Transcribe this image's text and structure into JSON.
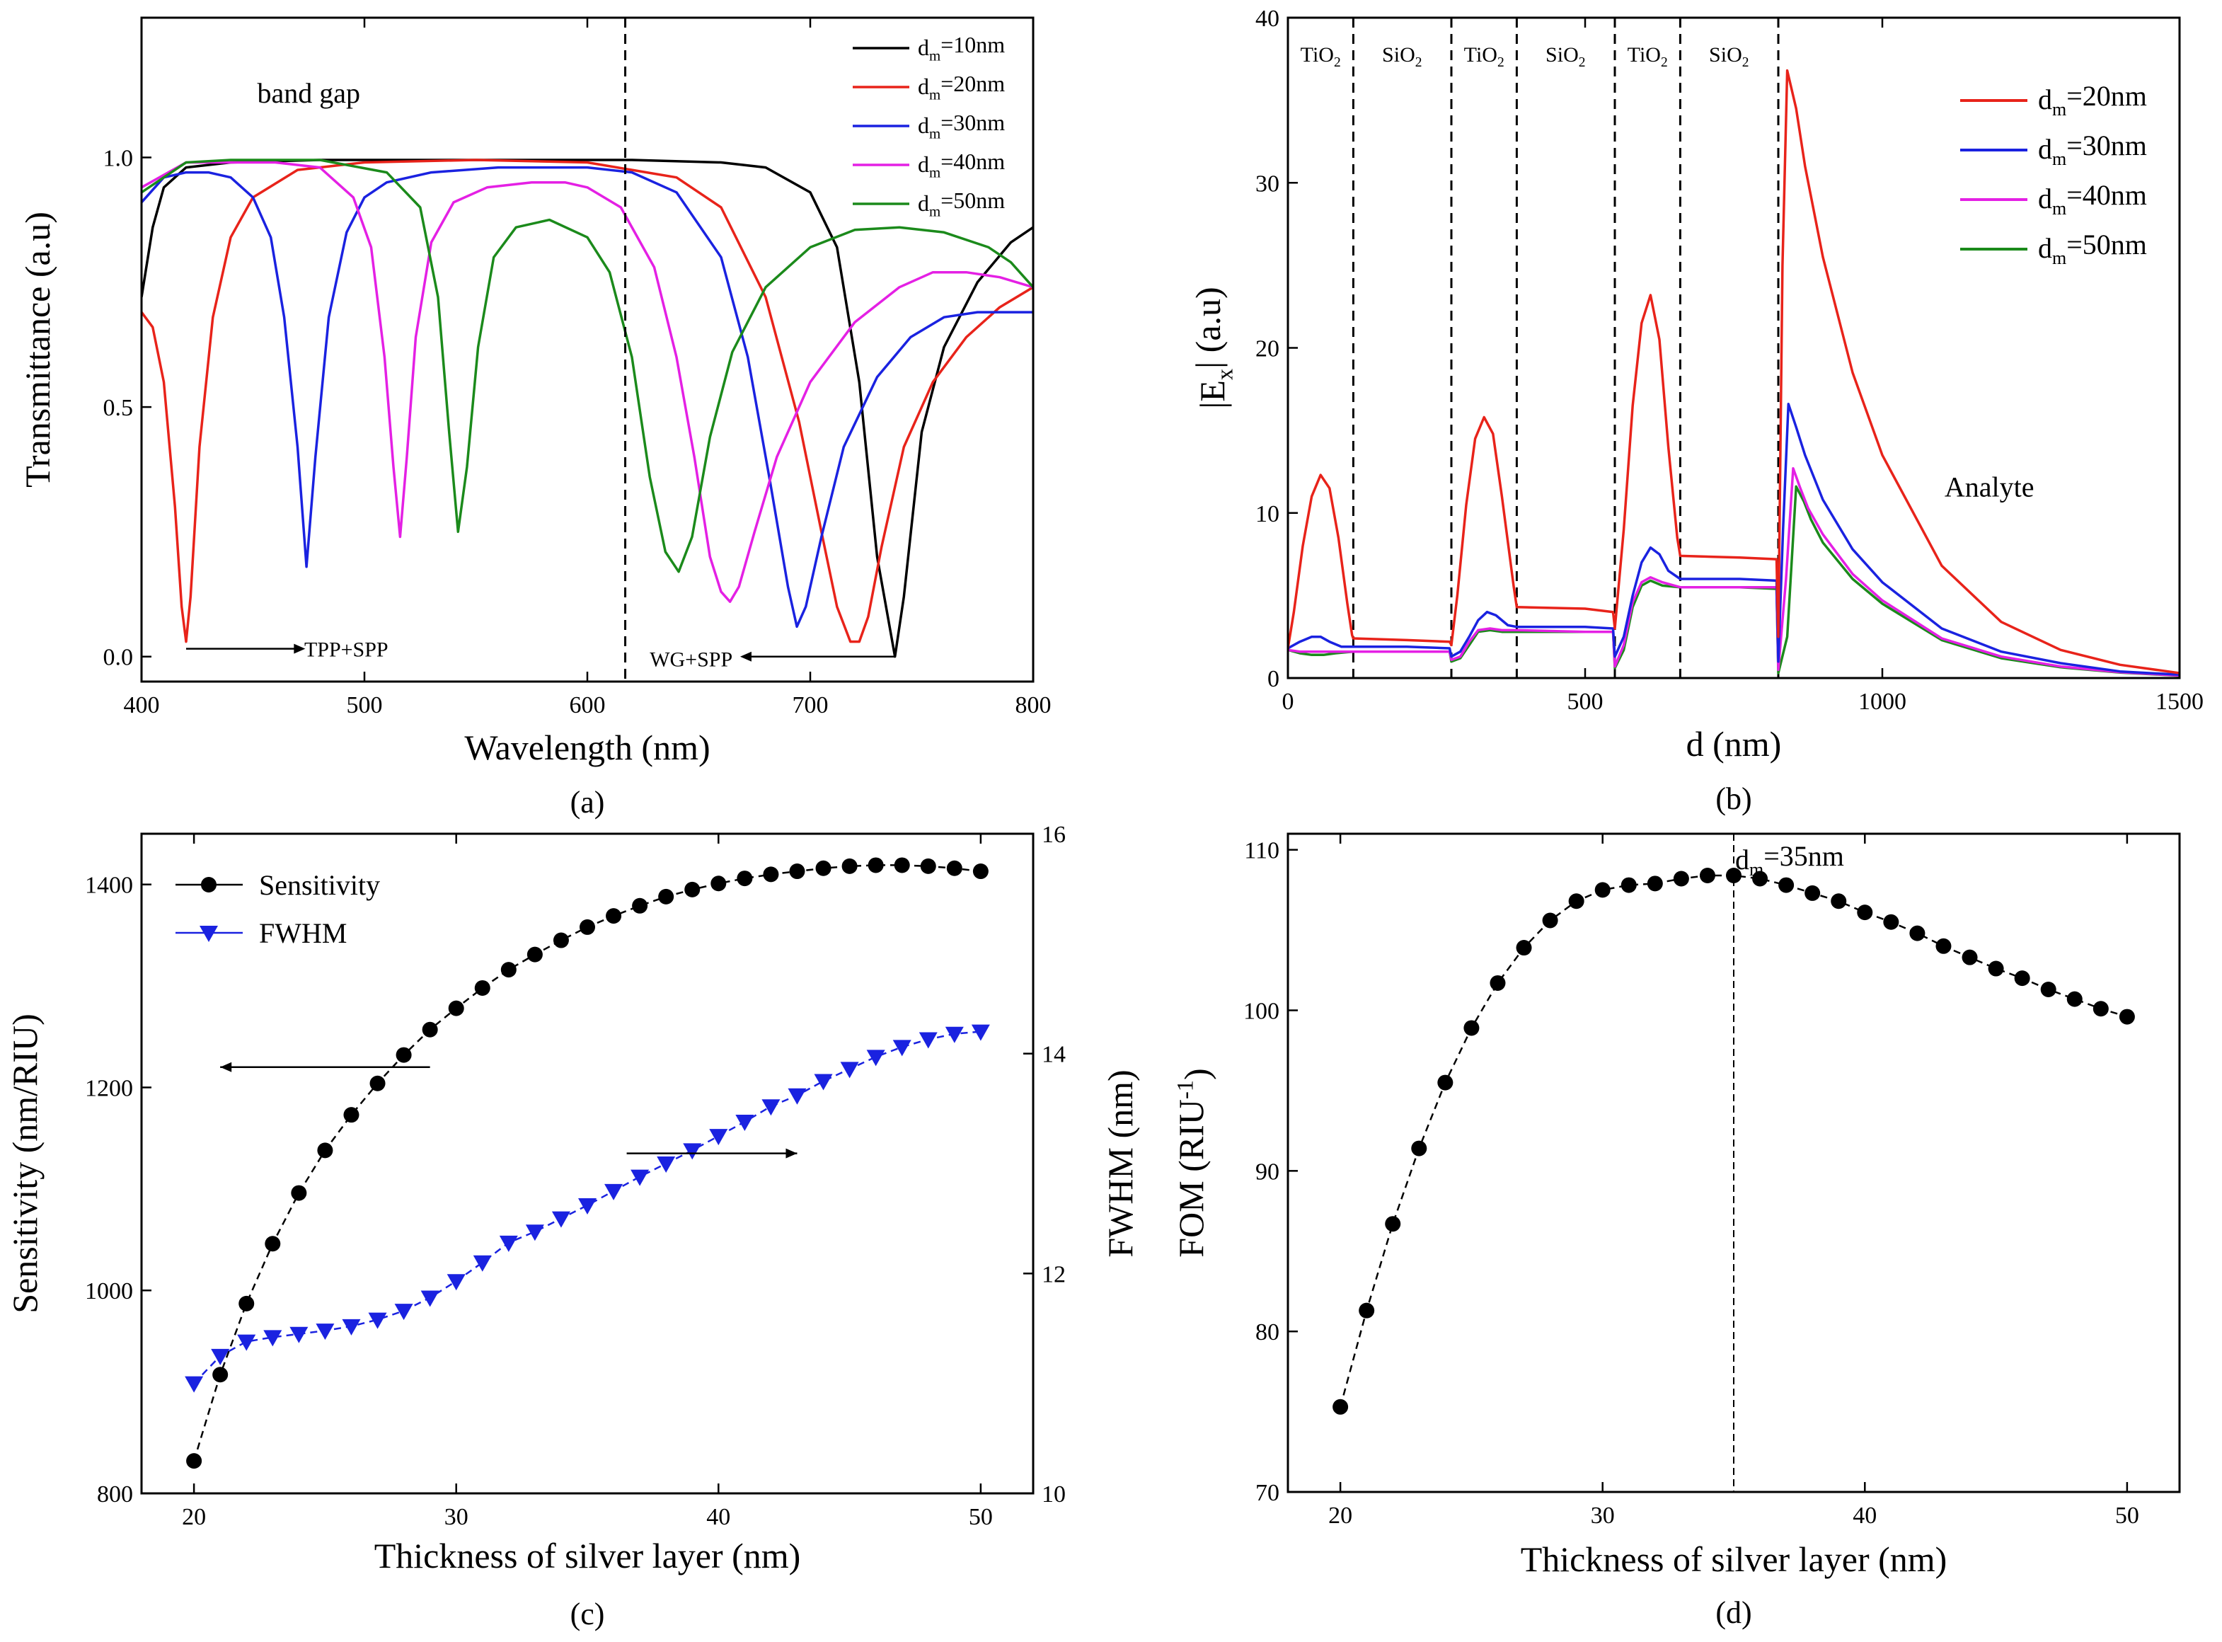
{
  "chart_data": [
    {
      "panel": "a",
      "type": "line",
      "caption": "(a)",
      "xlabel": "Wavelength (nm)",
      "ylabel": "Transmittance (a.u)",
      "xlim": [
        400,
        800
      ],
      "ylim": [
        -0.05,
        1.28
      ],
      "xticks": [
        400,
        500,
        600,
        700,
        800
      ],
      "yticks": [
        0.0,
        0.5,
        1.0
      ],
      "ytick_labels": [
        "0.0",
        "0.5",
        "1.0"
      ],
      "legend_position": "top-right",
      "vline_x": 617,
      "annotations": [
        {
          "text": "band gap",
          "x": 475,
          "y": 1.11
        },
        {
          "text": "TPP+SPP",
          "x": 473,
          "y": 0.02,
          "arrow_from": 420,
          "arrow_to": 469
        },
        {
          "text": "WG+SPP",
          "x": 628,
          "y": 0.0,
          "arrow_from": 738,
          "arrow_to": 673
        }
      ],
      "series": [
        {
          "name_base": "d",
          "name_sub": "m",
          "name_rest": "=10nm",
          "color": "#000000",
          "x": [
            400,
            405,
            410,
            420,
            440,
            480,
            550,
            620,
            660,
            680,
            700,
            712,
            722,
            730,
            738,
            742,
            750,
            760,
            775,
            790,
            800
          ],
          "y": [
            0.72,
            0.86,
            0.94,
            0.98,
            0.99,
            0.995,
            0.995,
            0.995,
            0.99,
            0.98,
            0.93,
            0.82,
            0.55,
            0.2,
            0.0,
            0.12,
            0.45,
            0.62,
            0.75,
            0.83,
            0.86
          ]
        },
        {
          "name_base": "d",
          "name_sub": "m",
          "name_rest": "=20nm",
          "color": "#e8231a",
          "x": [
            400,
            405,
            410,
            415,
            418,
            420,
            422,
            426,
            432,
            440,
            450,
            470,
            500,
            550,
            600,
            640,
            660,
            680,
            695,
            705,
            712,
            718,
            722,
            726,
            732,
            742,
            755,
            770,
            785,
            800
          ],
          "y": [
            0.69,
            0.66,
            0.55,
            0.3,
            0.1,
            0.03,
            0.12,
            0.42,
            0.68,
            0.84,
            0.92,
            0.975,
            0.99,
            0.995,
            0.99,
            0.96,
            0.9,
            0.72,
            0.47,
            0.25,
            0.1,
            0.03,
            0.03,
            0.08,
            0.22,
            0.42,
            0.55,
            0.64,
            0.7,
            0.74
          ]
        },
        {
          "name_base": "d",
          "name_sub": "m",
          "name_rest": "=30nm",
          "color": "#1a22e0",
          "x": [
            400,
            410,
            420,
            430,
            440,
            450,
            458,
            464,
            470,
            474,
            478,
            484,
            492,
            500,
            510,
            530,
            560,
            600,
            620,
            640,
            660,
            672,
            682,
            690,
            694,
            698,
            705,
            715,
            730,
            745,
            760,
            775,
            790,
            800
          ],
          "y": [
            0.91,
            0.96,
            0.97,
            0.97,
            0.96,
            0.92,
            0.84,
            0.68,
            0.42,
            0.18,
            0.4,
            0.68,
            0.85,
            0.92,
            0.95,
            0.97,
            0.98,
            0.98,
            0.97,
            0.93,
            0.8,
            0.6,
            0.35,
            0.14,
            0.06,
            0.1,
            0.24,
            0.42,
            0.56,
            0.64,
            0.68,
            0.69,
            0.69,
            0.69
          ]
        },
        {
          "name_base": "d",
          "name_sub": "m",
          "name_rest": "=40nm",
          "color": "#e420e4",
          "x": [
            400,
            420,
            440,
            460,
            480,
            495,
            503,
            509,
            513,
            516,
            519,
            523,
            530,
            540,
            555,
            575,
            590,
            600,
            615,
            630,
            640,
            648,
            655,
            660,
            664,
            668,
            675,
            685,
            700,
            720,
            740,
            755,
            770,
            785,
            800
          ],
          "y": [
            0.94,
            0.99,
            0.99,
            0.99,
            0.98,
            0.92,
            0.82,
            0.6,
            0.38,
            0.24,
            0.4,
            0.64,
            0.83,
            0.91,
            0.94,
            0.95,
            0.95,
            0.94,
            0.9,
            0.78,
            0.6,
            0.4,
            0.2,
            0.13,
            0.11,
            0.14,
            0.25,
            0.4,
            0.55,
            0.67,
            0.74,
            0.77,
            0.77,
            0.76,
            0.74
          ]
        },
        {
          "name_base": "d",
          "name_sub": "m",
          "name_rest": "=50nm",
          "color": "#1b8a1b",
          "x": [
            400,
            420,
            440,
            480,
            510,
            525,
            533,
            538,
            542,
            546,
            551,
            558,
            568,
            583,
            600,
            610,
            620,
            628,
            635,
            641,
            647,
            655,
            665,
            680,
            700,
            720,
            740,
            760,
            780,
            790,
            800
          ],
          "y": [
            0.93,
            0.99,
            0.995,
            0.995,
            0.97,
            0.9,
            0.72,
            0.45,
            0.25,
            0.38,
            0.62,
            0.8,
            0.86,
            0.875,
            0.84,
            0.77,
            0.6,
            0.36,
            0.21,
            0.17,
            0.24,
            0.44,
            0.61,
            0.74,
            0.82,
            0.855,
            0.86,
            0.85,
            0.82,
            0.79,
            0.74
          ]
        }
      ]
    },
    {
      "panel": "b",
      "type": "line",
      "caption": "(b)",
      "xlabel": "d (nm)",
      "ylabel_pre": "|E",
      "ylabel_sub": "x",
      "ylabel_post": "| (a.u)",
      "xlim": [
        0,
        1500
      ],
      "ylim": [
        0,
        40
      ],
      "xticks": [
        0,
        500,
        1000,
        1500
      ],
      "yticks": [
        0,
        10,
        20,
        30,
        40
      ],
      "legend_position": "top-right",
      "layer_boundaries": [
        110,
        275,
        385,
        550,
        660,
        825
      ],
      "layer_labels": [
        {
          "base": "TiO",
          "sub": "2",
          "x": 55
        },
        {
          "base": "SiO",
          "sub": "2",
          "x": 192
        },
        {
          "base": "TiO",
          "sub": "2",
          "x": 330
        },
        {
          "base": "SiO",
          "sub": "2",
          "x": 467
        },
        {
          "base": "TiO",
          "sub": "2",
          "x": 605
        },
        {
          "base": "SiO",
          "sub": "2",
          "x": 742
        }
      ],
      "annotations": [
        {
          "text": "Analyte",
          "x": 1180,
          "y": 11
        }
      ],
      "series": [
        {
          "name_base": "d",
          "name_sub": "m",
          "name_rest": "=20nm",
          "color": "#e8231a",
          "x": [
            0,
            10,
            25,
            40,
            55,
            70,
            85,
            100,
            108,
            110,
            200,
            272,
            275,
            285,
            300,
            315,
            330,
            345,
            360,
            380,
            385,
            500,
            547,
            550,
            565,
            580,
            595,
            610,
            625,
            640,
            655,
            660,
            760,
            822,
            825,
            832,
            840,
            855,
            870,
            900,
            950,
            1000,
            1100,
            1200,
            1300,
            1400,
            1500
          ],
          "y": [
            1.8,
            4.0,
            8.0,
            11.0,
            12.3,
            11.5,
            8.5,
            4.5,
            2.6,
            2.4,
            2.3,
            2.2,
            2.0,
            5.0,
            10.5,
            14.5,
            15.8,
            14.8,
            11.0,
            5.5,
            4.3,
            4.2,
            4.0,
            3.0,
            9.0,
            16.5,
            21.5,
            23.2,
            20.5,
            14.0,
            8.5,
            7.4,
            7.3,
            7.2,
            2.5,
            25.0,
            36.8,
            34.5,
            31.0,
            25.5,
            18.5,
            13.5,
            6.8,
            3.4,
            1.7,
            0.8,
            0.3
          ]
        },
        {
          "name_base": "d",
          "name_sub": "m",
          "name_rest": "=30nm",
          "color": "#1a22e0",
          "x": [
            0,
            20,
            40,
            55,
            70,
            90,
            110,
            200,
            272,
            275,
            290,
            305,
            320,
            335,
            350,
            370,
            385,
            500,
            547,
            550,
            565,
            580,
            595,
            610,
            625,
            640,
            660,
            760,
            822,
            825,
            833,
            842,
            855,
            870,
            900,
            950,
            1000,
            1100,
            1200,
            1300,
            1400,
            1500
          ],
          "y": [
            1.8,
            2.2,
            2.5,
            2.5,
            2.2,
            1.9,
            1.9,
            1.9,
            1.8,
            1.3,
            1.6,
            2.5,
            3.5,
            4.0,
            3.8,
            3.2,
            3.1,
            3.1,
            3.0,
            1.3,
            2.5,
            5.0,
            7.0,
            7.9,
            7.5,
            6.5,
            6.0,
            6.0,
            5.9,
            1.0,
            9.0,
            16.6,
            15.2,
            13.5,
            10.8,
            7.8,
            5.8,
            3.0,
            1.6,
            0.9,
            0.4,
            0.2
          ]
        },
        {
          "name_base": "d",
          "name_sub": "m",
          "name_rest": "=40nm",
          "color": "#e420e4",
          "x": [
            0,
            20,
            40,
            60,
            80,
            110,
            200,
            272,
            275,
            290,
            305,
            320,
            340,
            360,
            385,
            500,
            547,
            550,
            565,
            580,
            595,
            610,
            630,
            660,
            760,
            822,
            825,
            838,
            850,
            862,
            875,
            900,
            950,
            1000,
            1100,
            1200,
            1300,
            1400,
            1500
          ],
          "y": [
            1.7,
            1.6,
            1.6,
            1.6,
            1.6,
            1.6,
            1.6,
            1.6,
            1.1,
            1.3,
            2.2,
            2.9,
            3.0,
            2.9,
            2.9,
            2.8,
            2.8,
            0.7,
            2.0,
            4.6,
            5.8,
            6.1,
            5.8,
            5.5,
            5.5,
            5.5,
            0.5,
            6.0,
            12.7,
            11.5,
            10.3,
            8.7,
            6.3,
            4.7,
            2.4,
            1.3,
            0.7,
            0.35,
            0.15
          ]
        },
        {
          "name_base": "d",
          "name_sub": "m",
          "name_rest": "=50nm",
          "color": "#1b8a1b",
          "x": [
            0,
            20,
            40,
            60,
            80,
            110,
            200,
            272,
            275,
            290,
            305,
            320,
            340,
            360,
            385,
            500,
            547,
            550,
            565,
            580,
            595,
            610,
            630,
            660,
            760,
            822,
            825,
            840,
            855,
            868,
            880,
            900,
            950,
            1000,
            1100,
            1200,
            1300,
            1400,
            1500
          ],
          "y": [
            1.7,
            1.5,
            1.4,
            1.4,
            1.5,
            1.6,
            1.6,
            1.6,
            1.0,
            1.2,
            2.0,
            2.8,
            2.9,
            2.8,
            2.8,
            2.8,
            2.8,
            0.6,
            1.7,
            4.3,
            5.6,
            5.9,
            5.6,
            5.5,
            5.5,
            5.4,
            0.3,
            2.5,
            11.6,
            10.7,
            9.6,
            8.2,
            6.0,
            4.5,
            2.3,
            1.2,
            0.65,
            0.33,
            0.14
          ]
        }
      ]
    },
    {
      "panel": "c",
      "type": "line",
      "caption": "(c)",
      "xlabel": "Thickness of silver layer (nm)",
      "ylabel": "Sensitivity (nm/RIU)",
      "y2label": "FWHM (nm)",
      "xlim": [
        18,
        52
      ],
      "ylim": [
        800,
        1450
      ],
      "y2lim": [
        10,
        16
      ],
      "xticks": [
        20,
        30,
        40,
        50
      ],
      "yticks": [
        800,
        1000,
        1200,
        1400
      ],
      "y2ticks": [
        10,
        12,
        14,
        16
      ],
      "legend_position": "top-left",
      "x": [
        20,
        21,
        22,
        23,
        24,
        25,
        26,
        27,
        28,
        29,
        30,
        31,
        32,
        33,
        34,
        35,
        36,
        37,
        38,
        39,
        40,
        41,
        42,
        43,
        44,
        45,
        46,
        47,
        48,
        49,
        50
      ],
      "series": [
        {
          "name": "Sensitivity",
          "axis": "left",
          "marker": "circle",
          "color": "#000000",
          "values": [
            832,
            917,
            987,
            1046,
            1096,
            1138,
            1173,
            1204,
            1232,
            1257,
            1278,
            1298,
            1316,
            1331,
            1345,
            1358,
            1369,
            1379,
            1388,
            1395,
            1401,
            1406,
            1410,
            1413,
            1416,
            1418,
            1419,
            1419,
            1418,
            1416,
            1413
          ]
        },
        {
          "name": "FWHM",
          "axis": "right",
          "marker": "triangle-down",
          "color": "#1a22e0",
          "values": [
            11.0,
            11.25,
            11.38,
            11.42,
            11.45,
            11.48,
            11.52,
            11.58,
            11.66,
            11.78,
            11.93,
            12.1,
            12.28,
            12.38,
            12.5,
            12.62,
            12.75,
            12.88,
            13.0,
            13.12,
            13.25,
            13.38,
            13.52,
            13.62,
            13.75,
            13.86,
            13.97,
            14.06,
            14.13,
            14.18,
            14.2
          ]
        }
      ],
      "arrows": [
        {
          "direction": "left",
          "from_x": 29,
          "to_x": 21,
          "y": 1220
        },
        {
          "direction": "right",
          "from_x": 36.5,
          "to_x": 43,
          "y": 1135
        }
      ]
    },
    {
      "panel": "d",
      "type": "line",
      "caption": "(d)",
      "xlabel": "Thickness of silver layer (nm)",
      "ylabel_pre": "FOM (RIU",
      "ylabel_sup": "-1",
      "ylabel_post": ")",
      "xlim": [
        18,
        52
      ],
      "ylim": [
        70,
        111
      ],
      "xticks": [
        20,
        30,
        40,
        50
      ],
      "yticks": [
        70,
        80,
        90,
        100,
        110
      ],
      "vline_x": 35,
      "annotation": {
        "base": "d",
        "sub": "m",
        "rest": "=35nm"
      },
      "x": [
        20,
        21,
        22,
        23,
        24,
        25,
        26,
        27,
        28,
        29,
        30,
        31,
        32,
        33,
        34,
        35,
        36,
        37,
        38,
        39,
        40,
        41,
        42,
        43,
        44,
        45,
        46,
        47,
        48,
        49,
        50
      ],
      "values": [
        75.3,
        81.3,
        86.7,
        91.4,
        95.5,
        98.9,
        101.7,
        103.9,
        105.6,
        106.8,
        107.5,
        107.8,
        107.9,
        108.2,
        108.4,
        108.4,
        108.2,
        107.8,
        107.3,
        106.8,
        106.1,
        105.5,
        104.8,
        104.0,
        103.3,
        102.6,
        102.0,
        101.3,
        100.7,
        100.1,
        99.6
      ]
    }
  ]
}
